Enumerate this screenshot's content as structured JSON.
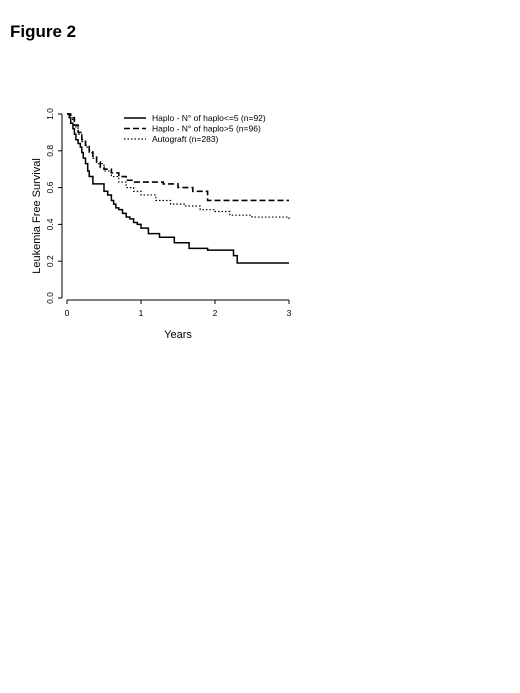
{
  "figure_title": "Figure 2",
  "chart_data": {
    "type": "line",
    "xlabel": "Years",
    "ylabel": "Leukemia Free Survival",
    "xlim": [
      0,
      3
    ],
    "ylim": [
      0,
      1
    ],
    "x_ticks": [
      "0",
      "1",
      "2",
      "3"
    ],
    "y_ticks": [
      "0.0",
      "0.2",
      "0.4",
      "0.6",
      "0.8",
      "1.0"
    ],
    "grid": false,
    "legend_position": "top-right",
    "series": [
      {
        "name": "Haplo - N° of haplo<=5 (n=92)",
        "style": "solid",
        "x": [
          0,
          0.03,
          0.05,
          0.08,
          0.1,
          0.12,
          0.15,
          0.18,
          0.2,
          0.22,
          0.25,
          0.28,
          0.3,
          0.35,
          0.4,
          0.5,
          0.55,
          0.6,
          0.63,
          0.66,
          0.7,
          0.75,
          0.8,
          0.85,
          0.9,
          0.95,
          1.0,
          1.1,
          1.25,
          1.45,
          1.65,
          1.9,
          2.25,
          2.3,
          3.0
        ],
        "y": [
          1.0,
          0.98,
          0.95,
          0.92,
          0.89,
          0.86,
          0.84,
          0.82,
          0.79,
          0.76,
          0.73,
          0.69,
          0.66,
          0.62,
          0.62,
          0.58,
          0.56,
          0.53,
          0.51,
          0.49,
          0.48,
          0.46,
          0.44,
          0.43,
          0.41,
          0.4,
          0.38,
          0.35,
          0.33,
          0.3,
          0.27,
          0.26,
          0.23,
          0.19,
          0.19
        ]
      },
      {
        "name": "Haplo - N° of haplo>5 (n=96)",
        "style": "dashed",
        "x": [
          0,
          0.05,
          0.1,
          0.15,
          0.2,
          0.25,
          0.3,
          0.35,
          0.4,
          0.45,
          0.5,
          0.6,
          0.7,
          0.8,
          0.9,
          1.0,
          1.3,
          1.5,
          1.7,
          1.9,
          2.2,
          3.0
        ],
        "y": [
          1.0,
          0.98,
          0.94,
          0.9,
          0.86,
          0.83,
          0.8,
          0.77,
          0.74,
          0.71,
          0.7,
          0.68,
          0.66,
          0.64,
          0.63,
          0.63,
          0.62,
          0.6,
          0.58,
          0.53,
          0.53,
          0.53
        ]
      },
      {
        "name": "Autograft (n=283)",
        "style": "dotted",
        "x": [
          0,
          0.05,
          0.1,
          0.15,
          0.2,
          0.25,
          0.3,
          0.35,
          0.4,
          0.5,
          0.6,
          0.7,
          0.8,
          0.9,
          1.0,
          1.2,
          1.4,
          1.6,
          1.8,
          2.0,
          2.2,
          2.5,
          2.8,
          3.0
        ],
        "y": [
          1.0,
          0.97,
          0.93,
          0.89,
          0.85,
          0.82,
          0.79,
          0.76,
          0.73,
          0.69,
          0.66,
          0.63,
          0.6,
          0.58,
          0.56,
          0.53,
          0.51,
          0.5,
          0.48,
          0.47,
          0.45,
          0.44,
          0.44,
          0.42
        ]
      }
    ]
  }
}
